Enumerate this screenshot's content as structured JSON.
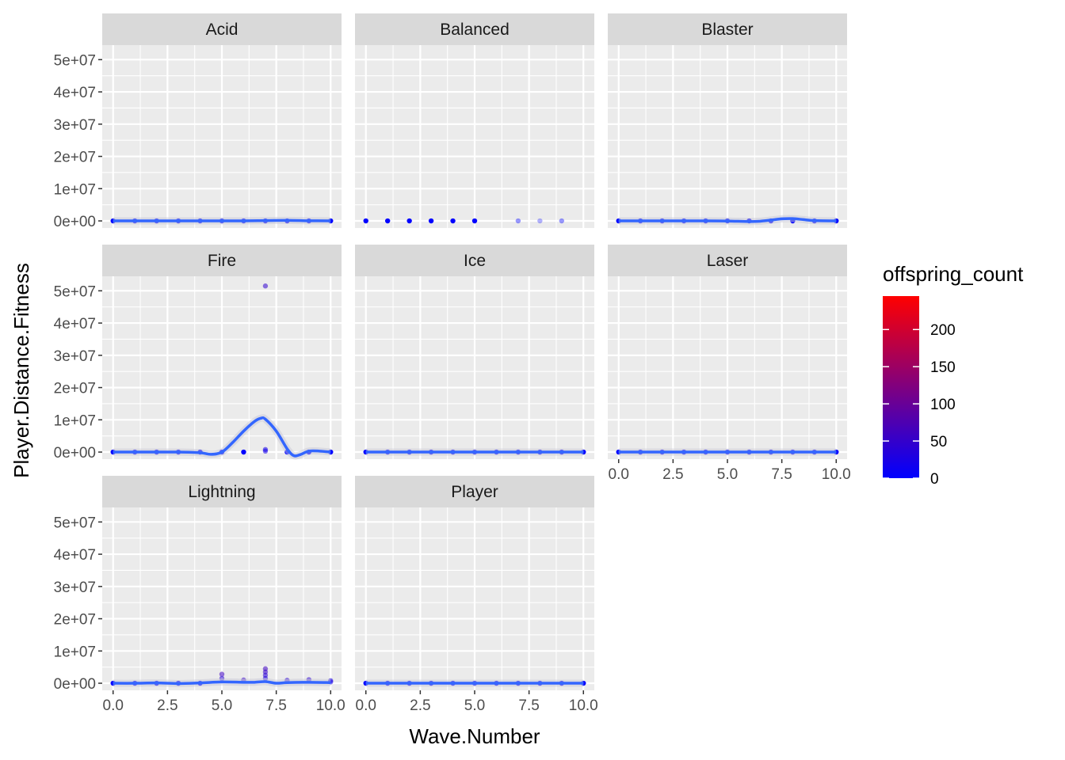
{
  "chart_data": {
    "type": "scatter",
    "layout": "facet_wrap",
    "xlabel": "Wave.Number",
    "ylabel": "Player.Distance.Fitness",
    "xlim": [
      -0.5,
      10.5
    ],
    "ylim": [
      -2200000,
      54500000
    ],
    "x_ticks": [
      0,
      2.5,
      5,
      7.5,
      10
    ],
    "x_tick_labels": [
      "0.0",
      "2.5",
      "5.0",
      "7.5",
      "10.0"
    ],
    "y_ticks": [
      0,
      10000000,
      20000000,
      30000000,
      40000000,
      50000000
    ],
    "y_tick_labels": [
      "0e+00",
      "1e+07",
      "2e+07",
      "3e+07",
      "4e+07",
      "5e+07"
    ],
    "grid": true,
    "colors": {
      "panel_bg": "#ebebeb",
      "strip_bg": "#d9d9d9",
      "grid": "#ffffff",
      "smooth_line": "#3366ff",
      "color_low": "#0000ff",
      "color_high": "#ff0000"
    },
    "legend": {
      "title": "offspring_count",
      "position": "right",
      "range": [
        0,
        245
      ],
      "breaks": [
        0,
        50,
        100,
        150,
        200
      ],
      "break_labels": [
        "0",
        "50",
        "100",
        "150",
        "200"
      ]
    },
    "facets": [
      {
        "label": "Acid",
        "points": [
          [
            0,
            0,
            0
          ],
          [
            1,
            0,
            0
          ],
          [
            2,
            0,
            0
          ],
          [
            3,
            0,
            0
          ],
          [
            4,
            0,
            0
          ],
          [
            5,
            0,
            0
          ],
          [
            6,
            0,
            0
          ],
          [
            7,
            0,
            0
          ],
          [
            8,
            0,
            0
          ],
          [
            9,
            0,
            0
          ],
          [
            10,
            0,
            0
          ]
        ],
        "smooth": [
          [
            0,
            0
          ],
          [
            2,
            0
          ],
          [
            4,
            0
          ],
          [
            6,
            0
          ],
          [
            7,
            100000
          ],
          [
            8,
            150000
          ],
          [
            9,
            50000
          ],
          [
            10,
            0
          ]
        ]
      },
      {
        "label": "Balanced",
        "points": [
          [
            0,
            0,
            0
          ],
          [
            1,
            0,
            0
          ],
          [
            2,
            0,
            0
          ],
          [
            3,
            0,
            0
          ],
          [
            4,
            0,
            0
          ],
          [
            5,
            0,
            0
          ],
          [
            7,
            0,
            0
          ],
          [
            8,
            0,
            0
          ],
          [
            9,
            0,
            0
          ]
        ],
        "point_alpha": [
          1,
          1,
          1,
          1,
          1,
          1,
          0.4,
          0.3,
          0.4
        ],
        "smooth": []
      },
      {
        "label": "Blaster",
        "points": [
          [
            0,
            0,
            0
          ],
          [
            1,
            0,
            0
          ],
          [
            2,
            0,
            0
          ],
          [
            3,
            0,
            0
          ],
          [
            4,
            0,
            0
          ],
          [
            5,
            0,
            0
          ],
          [
            6,
            0,
            0
          ],
          [
            7,
            0,
            0
          ],
          [
            8,
            0,
            0
          ],
          [
            9,
            0,
            0
          ],
          [
            10,
            0,
            0
          ]
        ],
        "smooth": [
          [
            0,
            0
          ],
          [
            2,
            0
          ],
          [
            4,
            0
          ],
          [
            5,
            -50000
          ],
          [
            6,
            -200000
          ],
          [
            6.5,
            -100000
          ],
          [
            7,
            250000
          ],
          [
            7.5,
            650000
          ],
          [
            8,
            700000
          ],
          [
            8.5,
            400000
          ],
          [
            9,
            100000
          ],
          [
            10,
            0
          ]
        ]
      },
      {
        "label": "Fire",
        "points": [
          [
            0,
            0,
            0
          ],
          [
            1,
            0,
            0
          ],
          [
            2,
            0,
            0
          ],
          [
            3,
            0,
            0
          ],
          [
            4,
            0,
            0
          ],
          [
            5,
            0,
            0
          ],
          [
            6,
            0,
            0
          ],
          [
            7,
            51500000,
            45
          ],
          [
            7,
            800000,
            20
          ],
          [
            7,
            300000,
            20
          ],
          [
            8,
            0,
            0
          ],
          [
            9,
            0,
            0
          ],
          [
            10,
            0,
            0
          ]
        ],
        "smooth": [
          [
            0,
            0
          ],
          [
            2,
            0
          ],
          [
            3,
            0
          ],
          [
            4,
            -200000
          ],
          [
            4.5,
            -700000
          ],
          [
            5,
            0
          ],
          [
            5.5,
            3000000
          ],
          [
            6,
            6500000
          ],
          [
            6.5,
            9500000
          ],
          [
            6.8,
            10500000
          ],
          [
            7,
            10200000
          ],
          [
            7.5,
            6500000
          ],
          [
            8,
            1000000
          ],
          [
            8.3,
            -1100000
          ],
          [
            8.6,
            -800000
          ],
          [
            9,
            300000
          ],
          [
            9.5,
            300000
          ],
          [
            10,
            0
          ]
        ]
      },
      {
        "label": "Ice",
        "points": [
          [
            0,
            0,
            0
          ],
          [
            1,
            0,
            0
          ],
          [
            2,
            0,
            0
          ],
          [
            3,
            0,
            0
          ],
          [
            4,
            0,
            0
          ],
          [
            5,
            0,
            0
          ],
          [
            6,
            0,
            0
          ],
          [
            7,
            0,
            0
          ],
          [
            8,
            0,
            0
          ],
          [
            9,
            0,
            0
          ],
          [
            10,
            0,
            0
          ]
        ],
        "smooth": [
          [
            0,
            0
          ],
          [
            10,
            0
          ]
        ]
      },
      {
        "label": "Laser",
        "points": [
          [
            0,
            0,
            0
          ],
          [
            1,
            0,
            0
          ],
          [
            2,
            0,
            0
          ],
          [
            3,
            0,
            0
          ],
          [
            4,
            0,
            0
          ],
          [
            5,
            0,
            0
          ],
          [
            6,
            0,
            0
          ],
          [
            7,
            0,
            0
          ],
          [
            8,
            0,
            0
          ],
          [
            9,
            0,
            0
          ],
          [
            10,
            0,
            0
          ]
        ],
        "smooth": [
          [
            0,
            0
          ],
          [
            10,
            0
          ]
        ]
      },
      {
        "label": "Lightning",
        "points": [
          [
            0,
            0,
            0
          ],
          [
            1,
            0,
            0
          ],
          [
            2,
            0,
            0
          ],
          [
            3,
            0,
            0
          ],
          [
            4,
            0,
            0
          ],
          [
            5,
            2800000,
            60
          ],
          [
            5,
            1500000,
            40
          ],
          [
            6,
            1000000,
            50
          ],
          [
            7,
            4500000,
            60
          ],
          [
            7,
            3500000,
            50
          ],
          [
            7,
            2500000,
            40
          ],
          [
            7,
            1500000,
            30
          ],
          [
            8,
            900000,
            40
          ],
          [
            9,
            1100000,
            40
          ],
          [
            10,
            800000,
            30
          ],
          [
            10,
            400000,
            20
          ]
        ],
        "smooth": [
          [
            0,
            0
          ],
          [
            1,
            0
          ],
          [
            2,
            100000
          ],
          [
            3,
            -100000
          ],
          [
            4,
            100000
          ],
          [
            5,
            400000
          ],
          [
            6,
            300000
          ],
          [
            6.5,
            300000
          ],
          [
            7,
            500000
          ],
          [
            7.5,
            0
          ],
          [
            8,
            200000
          ],
          [
            9,
            300000
          ],
          [
            10,
            200000
          ]
        ]
      },
      {
        "label": "Player",
        "points": [
          [
            0,
            0,
            0
          ],
          [
            1,
            0,
            0
          ],
          [
            2,
            0,
            0
          ],
          [
            3,
            0,
            0
          ],
          [
            4,
            0,
            0
          ],
          [
            5,
            0,
            0
          ],
          [
            6,
            0,
            0
          ],
          [
            7,
            0,
            0
          ],
          [
            8,
            0,
            0
          ],
          [
            9,
            0,
            0
          ],
          [
            10,
            0,
            0
          ]
        ],
        "smooth": [
          [
            0,
            0
          ],
          [
            10,
            0
          ]
        ]
      }
    ]
  }
}
